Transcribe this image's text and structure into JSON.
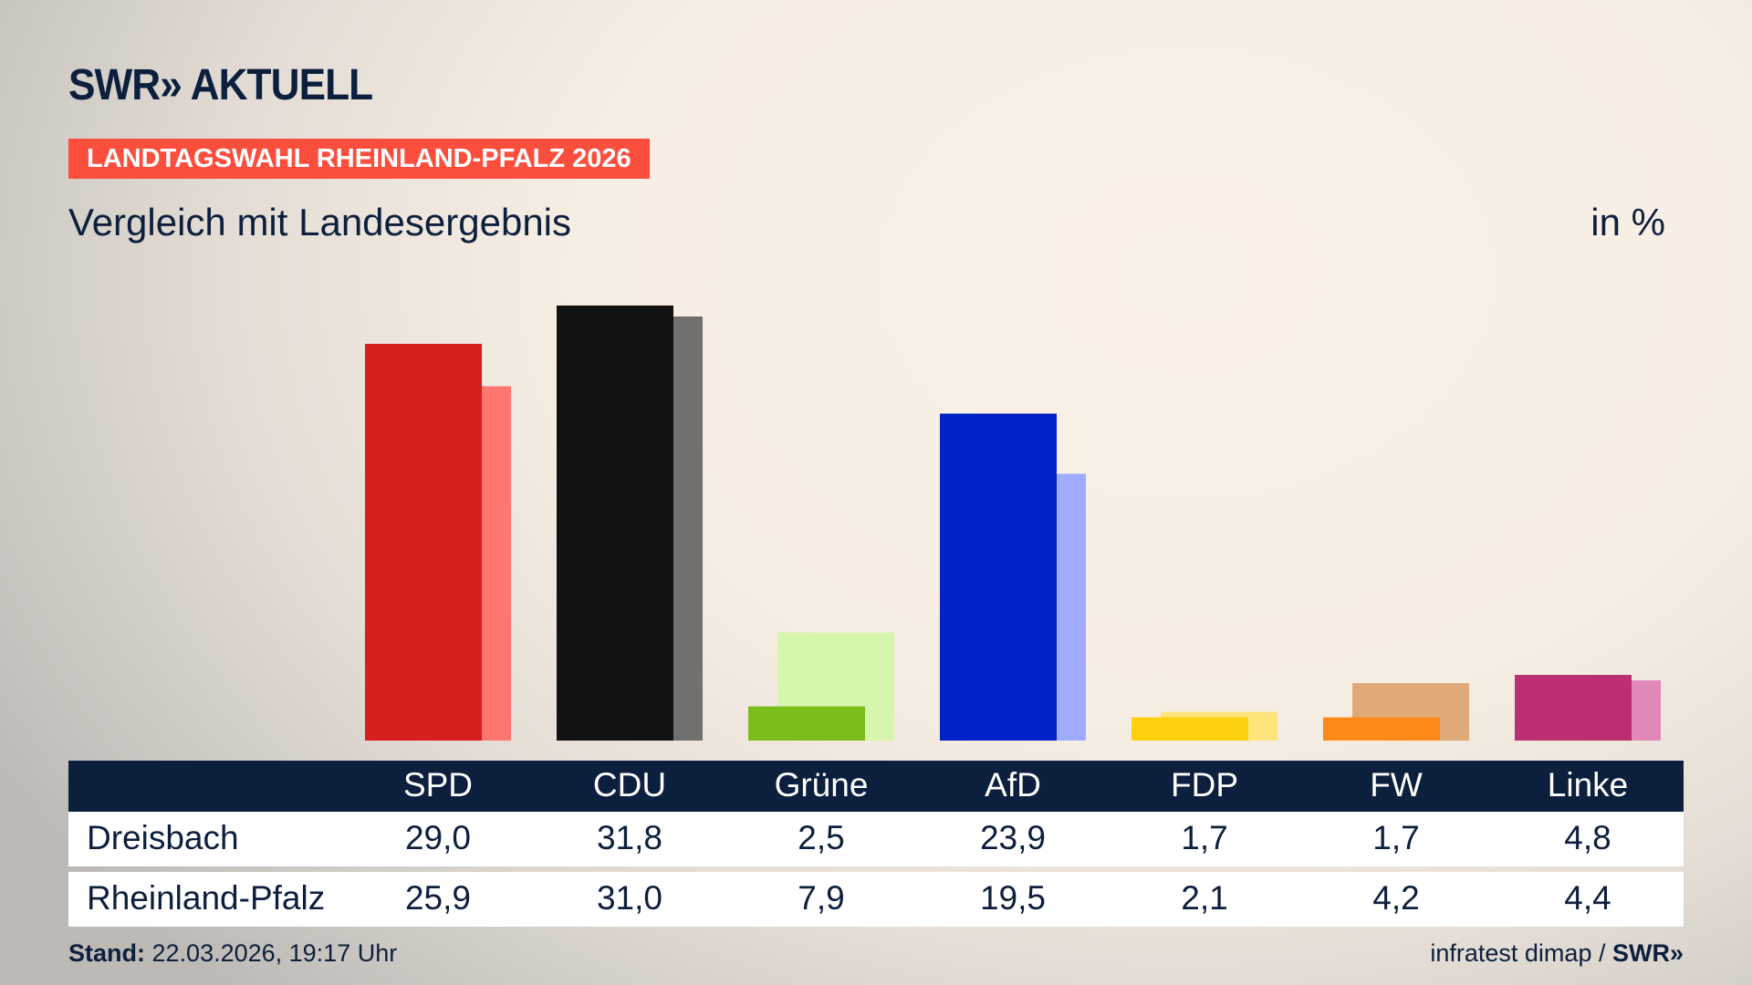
{
  "logo": "SWR» AKTUELL",
  "badge": "LANDTAGSWAHL RHEINLAND-PFALZ 2026",
  "subtitle": "Vergleich mit Landesergebnis",
  "unit": "in %",
  "footer": {
    "stand_label": "Stand:",
    "stand_value": "22.03.2026, 19:17 Uhr",
    "source": "infratest dimap /",
    "source_logo": "SWR»"
  },
  "chart_data": {
    "type": "bar",
    "categories": [
      "SPD",
      "CDU",
      "Grüne",
      "AfD",
      "FDP",
      "FW",
      "Linke"
    ],
    "series": [
      {
        "name": "Dreisbach",
        "values": [
          29.0,
          31.8,
          2.5,
          23.9,
          1.7,
          1.7,
          4.8
        ],
        "labels": [
          "29,0",
          "31,8",
          "2,5",
          "23,9",
          "1,7",
          "1,7",
          "4,8"
        ],
        "colors": [
          "#d71f1f",
          "#121212",
          "#7bbd1b",
          "#0020c8",
          "#fdd10d",
          "#fe8a1a",
          "#bc2f73"
        ]
      },
      {
        "name": "Rheinland-Pfalz",
        "values": [
          25.9,
          31.0,
          7.9,
          19.5,
          2.1,
          4.2,
          4.4
        ],
        "labels": [
          "25,9",
          "31,0",
          "7,9",
          "19,5",
          "2,1",
          "4,2",
          "4,4"
        ],
        "colors": [
          "#ff7670",
          "#72706e",
          "#d6f5ad",
          "#9eacff",
          "#ffe37b",
          "#dfaa77",
          "#e088b7"
        ]
      }
    ],
    "ylim": [
      0,
      31.8
    ]
  }
}
